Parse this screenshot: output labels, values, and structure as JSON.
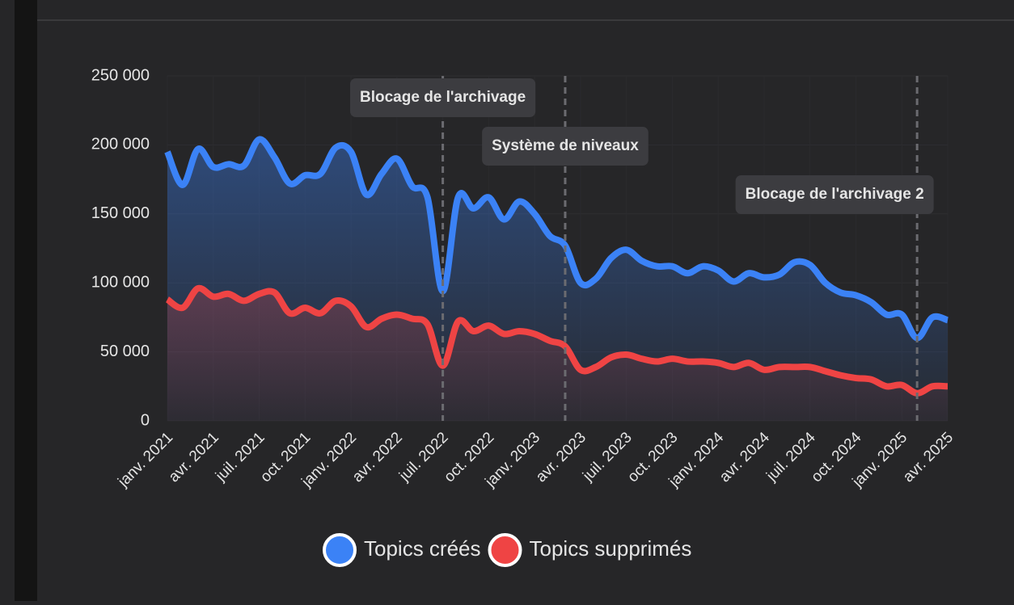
{
  "chart_data": {
    "type": "area-line",
    "x": [
      "2021-01",
      "2021-02",
      "2021-03",
      "2021-04",
      "2021-05",
      "2021-06",
      "2021-07",
      "2021-08",
      "2021-09",
      "2021-10",
      "2021-11",
      "2021-12",
      "2022-01",
      "2022-02",
      "2022-03",
      "2022-04",
      "2022-05",
      "2022-06",
      "2022-07",
      "2022-08",
      "2022-09",
      "2022-10",
      "2022-11",
      "2022-12",
      "2023-01",
      "2023-02",
      "2023-03",
      "2023-04",
      "2023-05",
      "2023-06",
      "2023-07",
      "2023-08",
      "2023-09",
      "2023-10",
      "2023-11",
      "2023-12",
      "2024-01",
      "2024-02",
      "2024-03",
      "2024-04",
      "2024-05",
      "2024-06",
      "2024-07",
      "2024-08",
      "2024-09",
      "2024-10",
      "2024-11",
      "2024-12",
      "2025-01",
      "2025-02",
      "2025-03",
      "2025-04"
    ],
    "series": [
      {
        "name": "Topics créés",
        "color": "#3b82f6",
        "values": [
          195000,
          171000,
          197000,
          184000,
          186000,
          185000,
          204000,
          191000,
          172000,
          178000,
          179000,
          198000,
          195000,
          164000,
          179000,
          190000,
          170000,
          162000,
          94000,
          162000,
          154000,
          162000,
          146000,
          159000,
          150000,
          134000,
          127000,
          100000,
          103000,
          118000,
          124000,
          116000,
          112000,
          112000,
          107000,
          112000,
          109000,
          101000,
          107000,
          104000,
          106000,
          115000,
          113000,
          100000,
          93000,
          91000,
          86000,
          77000,
          77000,
          60000,
          75000,
          73000
        ]
      },
      {
        "name": "Topics supprimés",
        "color": "#ef4444",
        "values": [
          88000,
          82000,
          96000,
          90000,
          92000,
          87000,
          92000,
          93000,
          78000,
          82000,
          78000,
          87000,
          83000,
          68000,
          74000,
          77000,
          74000,
          70000,
          40000,
          72000,
          65000,
          69000,
          63000,
          65000,
          63000,
          58000,
          54000,
          37000,
          39000,
          46000,
          48000,
          45000,
          43000,
          45000,
          43000,
          43000,
          42000,
          39000,
          42000,
          37000,
          39000,
          39000,
          39000,
          36000,
          33000,
          31000,
          30000,
          25000,
          26000,
          20000,
          25000,
          25000
        ]
      }
    ],
    "xticks": [
      {
        "value": "2021-01",
        "label": "janv. 2021"
      },
      {
        "value": "2021-04",
        "label": "avr. 2021"
      },
      {
        "value": "2021-07",
        "label": "juil. 2021"
      },
      {
        "value": "2021-10",
        "label": "oct. 2021"
      },
      {
        "value": "2022-01",
        "label": "janv. 2022"
      },
      {
        "value": "2022-04",
        "label": "avr. 2022"
      },
      {
        "value": "2022-07",
        "label": "juil. 2022"
      },
      {
        "value": "2022-10",
        "label": "oct. 2022"
      },
      {
        "value": "2023-01",
        "label": "janv. 2023"
      },
      {
        "value": "2023-04",
        "label": "avr. 2023"
      },
      {
        "value": "2023-07",
        "label": "juil. 2023"
      },
      {
        "value": "2023-10",
        "label": "oct. 2023"
      },
      {
        "value": "2024-01",
        "label": "janv. 2024"
      },
      {
        "value": "2024-04",
        "label": "avr. 2024"
      },
      {
        "value": "2024-07",
        "label": "juil. 2024"
      },
      {
        "value": "2024-10",
        "label": "oct. 2024"
      },
      {
        "value": "2025-01",
        "label": "janv. 2025"
      },
      {
        "value": "2025-04",
        "label": "avr. 2025"
      }
    ],
    "ylim": [
      0,
      250000
    ],
    "yticks": [
      0,
      {
        "value": 50000,
        "label": "50 000"
      },
      {
        "value": 100000,
        "label": "100 000"
      },
      {
        "value": 150000,
        "label": "150 000"
      },
      {
        "value": 200000,
        "label": "200 000"
      },
      {
        "value": 250000,
        "label": "250 000"
      }
    ],
    "annotations": [
      {
        "x": "2022-07",
        "label": "Blocage de l'archivage"
      },
      {
        "x": "2023-03",
        "label": "Système de niveaux"
      },
      {
        "x": "2025-02",
        "label": "Blocage de l'archivage 2"
      }
    ],
    "legend": "bottom"
  }
}
